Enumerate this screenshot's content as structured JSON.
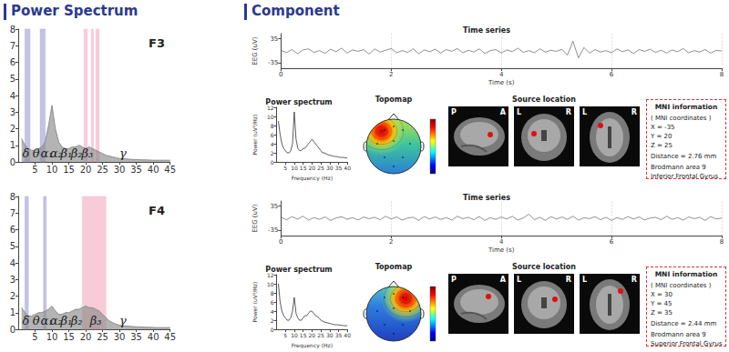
{
  "headers": [
    "Power Spectrum",
    "Component"
  ],
  "chart_data": [
    {
      "type": "area",
      "title": "F3",
      "color": "#8c8c8c",
      "grid": false,
      "x": [
        1,
        2,
        3,
        4,
        5,
        6,
        7,
        8,
        9,
        10,
        11,
        12,
        13,
        14,
        15,
        16,
        17,
        18,
        19,
        20,
        21,
        22,
        23,
        24,
        25,
        26,
        27,
        28,
        29,
        30,
        31,
        32,
        33,
        34,
        35,
        36,
        37,
        38,
        39,
        40,
        41,
        42,
        43,
        44,
        45
      ],
      "values": [
        1.4,
        1.0,
        0.8,
        0.7,
        0.7,
        0.8,
        0.9,
        1.2,
        2.2,
        3.4,
        2.0,
        1.2,
        0.9,
        0.8,
        0.8,
        0.9,
        0.9,
        1.0,
        0.9,
        0.8,
        0.9,
        0.8,
        0.7,
        0.6,
        0.5,
        0.4,
        0.35,
        0.3,
        0.25,
        0.2,
        0.2,
        0.18,
        0.16,
        0.15,
        0.14,
        0.13,
        0.12,
        0.12,
        0.11,
        0.1,
        0.1,
        0.1,
        0.1,
        0.1,
        0.1
      ],
      "xlim": [
        0,
        45
      ],
      "xticks": [
        5,
        10,
        15,
        20,
        25,
        30,
        35,
        40,
        45
      ],
      "ylim": [
        0,
        8
      ],
      "yticks": [
        0,
        1,
        2,
        3,
        4,
        5,
        6,
        7,
        8
      ],
      "bands": [
        {
          "from": 2,
          "to": 3.5,
          "color": "#a9a9dc"
        },
        {
          "from": 6.5,
          "to": 8,
          "color": "#a9a9dc"
        },
        {
          "from": 19.5,
          "to": 20.5,
          "color": "#f4b6c8"
        },
        {
          "from": 21.7,
          "to": 22.3,
          "color": "#f4b6c8"
        },
        {
          "from": 23,
          "to": 24,
          "color": "#f4b6c8"
        }
      ],
      "band_labels": [
        {
          "text": "δ",
          "x": 2.3
        },
        {
          "text": "θ",
          "x": 5.3
        },
        {
          "text": "α₁",
          "x": 8.5
        },
        {
          "text": "α₂",
          "x": 11.3
        },
        {
          "text": "β₁",
          "x": 14.3
        },
        {
          "text": "β₂",
          "x": 17.3
        },
        {
          "text": "β₃",
          "x": 20.5
        },
        {
          "text": "γ",
          "x": 31
        }
      ]
    },
    {
      "type": "area",
      "title": "F4",
      "color": "#8c8c8c",
      "grid": false,
      "x": [
        1,
        2,
        3,
        4,
        5,
        6,
        7,
        8,
        9,
        10,
        11,
        12,
        13,
        14,
        15,
        16,
        17,
        18,
        19,
        20,
        21,
        22,
        23,
        24,
        25,
        26,
        27,
        28,
        29,
        30,
        31,
        32,
        33,
        34,
        35,
        36,
        37,
        38,
        39,
        40,
        41,
        42,
        43,
        44,
        45
      ],
      "values": [
        1.3,
        1.0,
        0.8,
        0.8,
        0.9,
        1.0,
        1.0,
        1.1,
        1.2,
        1.4,
        1.1,
        0.9,
        0.9,
        1.0,
        1.0,
        1.1,
        1.2,
        1.2,
        1.3,
        1.4,
        1.3,
        1.3,
        1.2,
        1.1,
        0.9,
        0.7,
        0.5,
        0.4,
        0.3,
        0.25,
        0.2,
        0.2,
        0.18,
        0.16,
        0.15,
        0.14,
        0.13,
        0.12,
        0.12,
        0.11,
        0.1,
        0.1,
        0.1,
        0.1,
        0.1
      ],
      "xlim": [
        0,
        45
      ],
      "xticks": [
        5,
        10,
        15,
        20,
        25,
        30,
        35,
        40,
        45
      ],
      "ylim": [
        0,
        8
      ],
      "yticks": [
        0,
        1,
        2,
        3,
        4,
        5,
        6,
        7,
        8
      ],
      "bands": [
        {
          "from": 2,
          "to": 3,
          "color": "#a9a9dc"
        },
        {
          "from": 7.5,
          "to": 8.3,
          "color": "#a9a9dc"
        },
        {
          "from": 19,
          "to": 26,
          "color": "#f4b6c8"
        }
      ],
      "band_labels": [
        {
          "text": "δ",
          "x": 2.3
        },
        {
          "text": "θ",
          "x": 5.3
        },
        {
          "text": "α₁",
          "x": 8.5
        },
        {
          "text": "α₂",
          "x": 11.3
        },
        {
          "text": "β₁",
          "x": 14.3
        },
        {
          "text": "β₂",
          "x": 17.3
        },
        {
          "text": "β₃",
          "x": 23
        },
        {
          "text": "γ",
          "x": 31
        }
      ]
    },
    {
      "type": "line",
      "title": "Time series",
      "color": "#444444",
      "grid": true,
      "xlabel": "Time (s)",
      "ylabel": "EEG (uV)",
      "x": [
        0,
        0.1,
        0.2,
        0.3,
        0.4,
        0.5,
        0.6,
        0.7,
        0.8,
        0.9,
        1,
        1.1,
        1.2,
        1.3,
        1.4,
        1.5,
        1.6,
        1.7,
        1.8,
        1.9,
        2,
        2.1,
        2.2,
        2.3,
        2.4,
        2.5,
        2.6,
        2.7,
        2.8,
        2.9,
        3,
        3.1,
        3.2,
        3.3,
        3.4,
        3.5,
        3.6,
        3.7,
        3.8,
        3.9,
        4,
        4.1,
        4.2,
        4.3,
        4.4,
        4.5,
        4.6,
        4.7,
        4.8,
        4.9,
        5,
        5.1,
        5.2,
        5.3,
        5.4,
        5.5,
        5.6,
        5.7,
        5.8,
        5.9,
        6,
        6.1,
        6.2,
        6.3,
        6.4,
        6.5,
        6.6,
        6.7,
        6.8,
        6.9,
        7,
        7.1,
        7.2,
        7.3,
        7.4,
        7.5,
        7.6,
        7.7,
        7.8,
        7.9,
        8
      ],
      "values": [
        2,
        -5,
        4,
        -8,
        3,
        6,
        -4,
        1,
        -7,
        5,
        -2,
        8,
        -6,
        3,
        -1,
        4,
        -9,
        6,
        -3,
        2,
        7,
        -5,
        1,
        -4,
        6,
        -8,
        3,
        -2,
        5,
        -6,
        4,
        -1,
        7,
        -5,
        2,
        -3,
        6,
        -7,
        1,
        4,
        -6,
        3,
        -2,
        8,
        -4,
        1,
        -5,
        6,
        -3,
        2,
        -1,
        5,
        -12,
        28,
        -20,
        10,
        -6,
        4,
        -3,
        1,
        -5,
        6,
        -2,
        3,
        -7,
        4,
        -1,
        5,
        -4,
        2,
        -6,
        3,
        -2,
        7,
        -5,
        1,
        -3,
        4,
        -6,
        2,
        0
      ],
      "xlim": [
        0,
        8
      ],
      "xticks": [
        0,
        2,
        4,
        6,
        8
      ],
      "ylim": [
        -50,
        50
      ],
      "yticks": [
        -35,
        35
      ]
    },
    {
      "type": "line",
      "title": "Power spectrum",
      "color": "#333333",
      "grid": false,
      "xlabel": "Frequency (Hz)",
      "ylabel": "Power (uV²/Hz)",
      "x": [
        1,
        2,
        3,
        4,
        5,
        6,
        7,
        8,
        9,
        10,
        11,
        12,
        13,
        14,
        15,
        16,
        17,
        18,
        19,
        20,
        21,
        22,
        23,
        24,
        25,
        26,
        27,
        28,
        29,
        30,
        31,
        32,
        33,
        34,
        35,
        36,
        37,
        38,
        39,
        40
      ],
      "values": [
        9,
        6,
        4,
        3,
        2.5,
        2,
        2,
        2.5,
        4,
        11,
        5,
        3,
        2.5,
        2.5,
        3,
        3,
        3.5,
        4,
        4.5,
        5,
        4.5,
        4,
        3.5,
        3,
        2.5,
        2,
        2,
        1.8,
        1.6,
        1.5,
        1.4,
        1.3,
        1.2,
        1.2,
        1.1,
        1,
        1,
        1,
        0.9,
        0.9
      ],
      "xlim": [
        0,
        40
      ],
      "xticks": [
        5,
        10,
        15,
        20,
        25,
        30,
        35,
        40
      ],
      "ylim": [
        0,
        12
      ],
      "yticks": [
        0,
        2,
        4,
        6,
        8,
        10,
        12
      ]
    },
    {
      "type": "line",
      "title": "Time series",
      "color": "#444444",
      "grid": true,
      "xlabel": "Time (s)",
      "ylabel": "EEG (uV)",
      "x": [
        0,
        0.1,
        0.2,
        0.3,
        0.4,
        0.5,
        0.6,
        0.7,
        0.8,
        0.9,
        1,
        1.1,
        1.2,
        1.3,
        1.4,
        1.5,
        1.6,
        1.7,
        1.8,
        1.9,
        2,
        2.1,
        2.2,
        2.3,
        2.4,
        2.5,
        2.6,
        2.7,
        2.8,
        2.9,
        3,
        3.1,
        3.2,
        3.3,
        3.4,
        3.5,
        3.6,
        3.7,
        3.8,
        3.9,
        4,
        4.1,
        4.2,
        4.3,
        4.4,
        4.5,
        4.6,
        4.7,
        4.8,
        4.9,
        5,
        5.1,
        5.2,
        5.3,
        5.4,
        5.5,
        5.6,
        5.7,
        5.8,
        5.9,
        6,
        6.1,
        6.2,
        6.3,
        6.4,
        6.5,
        6.6,
        6.7,
        6.8,
        6.9,
        7,
        7.1,
        7.2,
        7.3,
        7.4,
        7.5,
        7.6,
        7.7,
        7.8,
        7.9,
        8
      ],
      "values": [
        3,
        -4,
        5,
        -2,
        6,
        -5,
        2,
        -3,
        4,
        -6,
        1,
        5,
        -3,
        2,
        -5,
        4,
        -1,
        3,
        -4,
        6,
        -2,
        4,
        -5,
        1,
        3,
        -6,
        5,
        -2,
        4,
        -3,
        2,
        -5,
        6,
        -1,
        3,
        -4,
        5,
        -6,
        2,
        -3,
        4,
        -2,
        6,
        -5,
        1,
        12,
        -4,
        3,
        -6,
        5,
        -2,
        4,
        -3,
        6,
        -5,
        2,
        -1,
        5,
        -4,
        3,
        -6,
        2,
        -3,
        5,
        -2,
        4,
        -5,
        1,
        3,
        -4,
        6,
        -3,
        2,
        -5,
        4,
        -1,
        3,
        -6,
        5,
        -2,
        1
      ],
      "xlim": [
        0,
        8
      ],
      "xticks": [
        0,
        2,
        4,
        6,
        8
      ],
      "ylim": [
        -50,
        50
      ],
      "yticks": [
        -35,
        35
      ]
    },
    {
      "type": "line",
      "title": "Power spectrum",
      "color": "#333333",
      "grid": false,
      "xlabel": "Frequency (Hz)",
      "ylabel": "Power (uV²/Hz)",
      "x": [
        1,
        2,
        3,
        4,
        5,
        6,
        7,
        8,
        9,
        10,
        11,
        12,
        13,
        14,
        15,
        16,
        17,
        18,
        19,
        20,
        21,
        22,
        23,
        24,
        25,
        26,
        27,
        28,
        29,
        30,
        31,
        32,
        33,
        34,
        35,
        36,
        37,
        38,
        39,
        40
      ],
      "values": [
        10,
        6,
        4,
        3,
        2.5,
        2,
        2,
        2.5,
        4,
        7,
        3.5,
        2.5,
        2,
        2,
        2.5,
        3,
        3,
        3.5,
        4,
        4,
        3.5,
        3,
        2.8,
        2.5,
        2,
        1.8,
        1.6,
        1.5,
        1.4,
        1.3,
        1.2,
        1.1,
        1,
        1,
        1,
        0.9,
        0.9,
        0.8,
        0.8,
        0.8
      ],
      "xlim": [
        0,
        40
      ],
      "xticks": [
        5,
        10,
        15,
        20,
        25,
        30,
        35,
        40
      ],
      "ylim": [
        0,
        12
      ],
      "yticks": [
        0,
        2,
        4,
        6,
        8,
        10,
        12
      ]
    }
  ],
  "components": [
    {
      "topomap": "Topomap",
      "source_location": "Source location",
      "views": [
        {
          "left": "P",
          "right": "A"
        },
        {
          "left": "L",
          "right": "R"
        },
        {
          "left": "L",
          "right": "R"
        }
      ],
      "mni": {
        "title": "MNI information",
        "lines": [
          "( MNI coordinates )",
          "X = -35",
          "Y = 20",
          "Z = 25",
          "Distance = 2.76 mm",
          "Brodmann area 9",
          "Inferior Frontal Gyrus"
        ]
      }
    },
    {
      "topomap": "Topomap",
      "source_location": "Source location",
      "views": [
        {
          "left": "P",
          "right": "A"
        },
        {
          "left": "L",
          "right": "R"
        },
        {
          "left": "L",
          "right": "R"
        }
      ],
      "mni": {
        "title": "MNI information",
        "lines": [
          "( MNI coordinates )",
          "X = 30",
          "Y = 45",
          "Z = 35",
          "Distance = 2.44 mm",
          "Brodmann area 9",
          "Superior Frontal Gyrus"
        ]
      }
    }
  ]
}
